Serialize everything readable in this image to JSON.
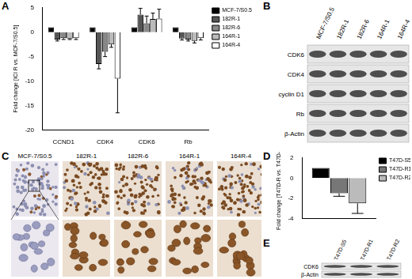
{
  "chart_data": [
    {
      "panel": "A",
      "type": "bar",
      "y_label": "Fold change [ICI R vs. MCF-7/S0.5]",
      "categories": [
        "CCND1",
        "CDK4",
        "CDK6",
        "Rb"
      ],
      "series": [
        {
          "name": "MCF-7/S0.5",
          "color": "#000000",
          "values": [
            1,
            1,
            1,
            1
          ],
          "errors": [
            null,
            null,
            null,
            null
          ]
        },
        {
          "name": "182R-1",
          "color": "#555555",
          "values": [
            -1.5,
            -6.5,
            3.6,
            -1.3
          ],
          "errors": [
            0.3,
            1.0,
            1.3,
            0.3
          ]
        },
        {
          "name": "182R-6",
          "color": "#888888",
          "values": [
            -1.2,
            -4.0,
            1.8,
            -1.5
          ],
          "errors": [
            0.3,
            1.0,
            1.5,
            0.3
          ]
        },
        {
          "name": "164R-1",
          "color": "#bbbbbb",
          "values": [
            -1.3,
            -2.5,
            2.7,
            -1.8
          ],
          "errors": [
            0.2,
            0.6,
            1.2,
            0.4
          ]
        },
        {
          "name": "164R-4",
          "color": "#ffffff",
          "values": [
            -1.2,
            -9.5,
            2.8,
            -1.2
          ],
          "errors": [
            0.3,
            7.0,
            1.9,
            0.4
          ]
        }
      ],
      "ylim": [
        -20,
        5
      ],
      "yticks": [
        -20,
        -15,
        -10,
        -5,
        0,
        5
      ],
      "grid": false,
      "legend": "right"
    },
    {
      "panel": "D",
      "type": "bar",
      "y_label": "Fold change [T47D-R vs. T47D-S]",
      "categories": [
        null
      ],
      "series": [
        {
          "name": "T47D-S5",
          "color": "#000000",
          "values": [
            1
          ],
          "errors": [
            null
          ]
        },
        {
          "name": "T47D-R1",
          "color": "#777777",
          "values": [
            -1.5
          ],
          "errors": [
            0.3
          ]
        },
        {
          "name": "T47D-R2",
          "color": "#bbbbbb",
          "values": [
            -2.5
          ],
          "errors": [
            1.0
          ]
        }
      ],
      "ylim": [
        -4,
        2
      ],
      "yticks": [
        -4,
        -2,
        0,
        2
      ],
      "grid": false,
      "legend": "right"
    }
  ],
  "blots": [
    {
      "panel": "B",
      "lanes": [
        "MCF-7/S0.5",
        "182R-1",
        "182R-6",
        "164R-1",
        "164R-4"
      ],
      "rows": [
        "CDK6",
        "CDK4",
        "cyclin D1",
        "Rb",
        "β-Actin"
      ]
    },
    {
      "panel": "E",
      "lanes": [
        "T47D-S5",
        "T47D-R1",
        "T47D-R2"
      ],
      "rows": [
        "CDK6",
        "β-Actin"
      ]
    }
  ],
  "ihc": {
    "panel": "C",
    "samples": [
      "MCF-7/S0.5",
      "182R-1",
      "182R-6",
      "164R-1",
      "164R-4"
    ]
  }
}
